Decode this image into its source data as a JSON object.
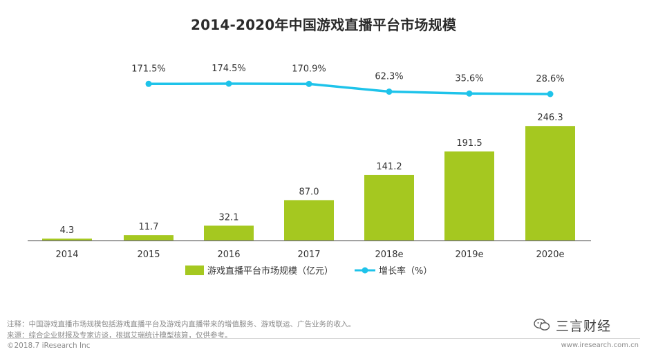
{
  "chart_data": {
    "type": "bar",
    "title": "2014-2020年中国游戏直播平台市场规模",
    "categories": [
      "2014",
      "2015",
      "2016",
      "2017",
      "2018e",
      "2019e",
      "2020e"
    ],
    "series": [
      {
        "name": "游戏直播平台市场规模（亿元）",
        "type": "bar",
        "color": "#a5c820",
        "values": [
          4.3,
          11.7,
          32.1,
          87.0,
          141.2,
          191.5,
          246.3
        ],
        "labels": [
          "4.3",
          "11.7",
          "32.1",
          "87.0",
          "141.2",
          "191.5",
          "246.3"
        ]
      },
      {
        "name": "增长率（%）",
        "type": "line",
        "color": "#1ec3ea",
        "values": [
          null,
          171.5,
          174.5,
          170.9,
          62.3,
          35.6,
          28.6
        ],
        "labels": [
          "",
          "171.5%",
          "174.5%",
          "170.9%",
          "62.3%",
          "35.6%",
          "28.6%"
        ]
      }
    ],
    "ylim": [
      0,
      260
    ],
    "y2lim": [
      0,
      180
    ],
    "grid": false,
    "legend": "bottom"
  },
  "footer": {
    "note": "注释：中国游戏直播市场规模包括游戏直播平台及游戏内直播带来的增值服务、游戏联运、广告业务的收入。",
    "source": "来源：综合企业财报及专家访谈，根据艾瑞统计模型核算，仅供参考。",
    "copyright": "©2018.7 iResearch Inc",
    "website": "www.iresearch.com.cn"
  },
  "watermark": {
    "text": "三言财经",
    "icon": "wechat-icon"
  }
}
